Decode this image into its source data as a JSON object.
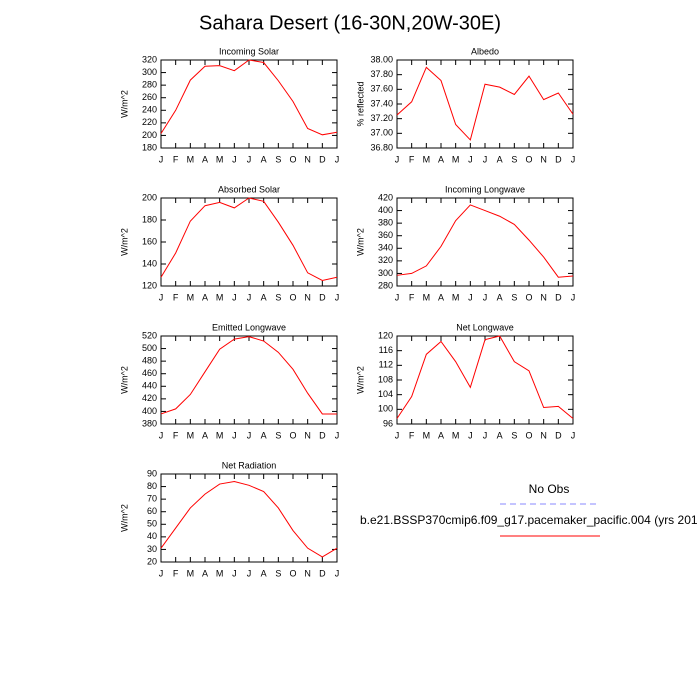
{
  "title": "Sahara Desert (16-30N,20W-30E)",
  "legend": [
    {
      "name": "No Obs",
      "color": "#8a8aff",
      "dashed": true
    },
    {
      "name": "b.e21.BSSP370cmip6.f09_g17.pacemaker_pacific.004 (yrs 201",
      "color": "#ff0000",
      "dashed": false
    }
  ],
  "chart_data": [
    {
      "type": "line",
      "title": "Incoming Solar",
      "ylabel": "W/m^2",
      "color": "#ff0000",
      "categories": [
        "J",
        "F",
        "M",
        "A",
        "M",
        "J",
        "J",
        "A",
        "S",
        "O",
        "N",
        "D",
        "J"
      ],
      "values": [
        203,
        240,
        288,
        310,
        311,
        303,
        320,
        316,
        287,
        254,
        211,
        201,
        205
      ],
      "ylim": [
        180,
        320
      ],
      "yticks": [
        180,
        200,
        220,
        240,
        260,
        280,
        300,
        320
      ]
    },
    {
      "type": "line",
      "title": "Albedo",
      "ylabel": "% reflected",
      "color": "#ff0000",
      "categories": [
        "J",
        "F",
        "M",
        "A",
        "M",
        "J",
        "J",
        "A",
        "S",
        "O",
        "N",
        "D",
        "J"
      ],
      "values": [
        37.25,
        37.43,
        37.9,
        37.72,
        37.12,
        36.91,
        37.67,
        37.63,
        37.53,
        37.78,
        37.46,
        37.55,
        37.26
      ],
      "ylim": [
        36.8,
        38.0
      ],
      "yticks": [
        {
          "value": 36.8,
          "label": "36.80"
        },
        {
          "value": 37.0,
          "label": "37.00"
        },
        {
          "value": 37.2,
          "label": "37.20"
        },
        {
          "value": 37.4,
          "label": "37.40"
        },
        {
          "value": 37.6,
          "label": "37.60"
        },
        {
          "value": 37.8,
          "label": "37.80"
        },
        {
          "value": 38.0,
          "label": "38.00"
        }
      ]
    },
    {
      "type": "line",
      "title": "Absorbed Solar",
      "ylabel": "W/m^2",
      "color": "#ff0000",
      "categories": [
        "J",
        "F",
        "M",
        "A",
        "M",
        "J",
        "J",
        "A",
        "S",
        "O",
        "N",
        "D",
        "J"
      ],
      "values": [
        128,
        150,
        179,
        193,
        196,
        191,
        200,
        197,
        178,
        157,
        132,
        125,
        128
      ],
      "ylim": [
        120,
        200
      ],
      "yticks": [
        120,
        140,
        160,
        180,
        200
      ]
    },
    {
      "type": "line",
      "title": "Incoming Longwave",
      "ylabel": "W/m^2",
      "color": "#ff0000",
      "categories": [
        "J",
        "F",
        "M",
        "A",
        "M",
        "J",
        "J",
        "A",
        "S",
        "O",
        "N",
        "D",
        "J"
      ],
      "values": [
        297,
        300,
        312,
        343,
        384,
        409,
        400,
        391,
        378,
        353,
        326,
        294,
        296
      ],
      "ylim": [
        280,
        420
      ],
      "yticks": [
        280,
        300,
        320,
        340,
        360,
        380,
        400,
        420
      ]
    },
    {
      "type": "line",
      "title": "Emitted Longwave",
      "ylabel": "W/m^2",
      "color": "#ff0000",
      "categories": [
        "J",
        "F",
        "M",
        "A",
        "M",
        "J",
        "J",
        "A",
        "S",
        "O",
        "N",
        "D",
        "J"
      ],
      "values": [
        396,
        404,
        427,
        463,
        499,
        515,
        519,
        512,
        494,
        467,
        429,
        396,
        396
      ],
      "ylim": [
        380,
        520
      ],
      "yticks": [
        380,
        400,
        420,
        440,
        460,
        480,
        500,
        520
      ]
    },
    {
      "type": "line",
      "title": "Net Longwave",
      "ylabel": "W/m^2",
      "color": "#ff0000",
      "categories": [
        "J",
        "F",
        "M",
        "A",
        "M",
        "J",
        "J",
        "A",
        "S",
        "O",
        "N",
        "D",
        "J"
      ],
      "values": [
        97.5,
        103.5,
        115,
        118.5,
        113,
        106,
        119,
        120,
        113,
        110.5,
        100.5,
        100.8,
        97.5
      ],
      "ylim": [
        96,
        120
      ],
      "yticks": [
        96,
        100,
        104,
        108,
        112,
        116,
        120
      ]
    },
    {
      "type": "line",
      "title": "Net Radiation",
      "ylabel": "W/m^2",
      "color": "#ff0000",
      "categories": [
        "J",
        "F",
        "M",
        "A",
        "M",
        "J",
        "J",
        "A",
        "S",
        "O",
        "N",
        "D",
        "J"
      ],
      "values": [
        31,
        47,
        63,
        74,
        82,
        84,
        81,
        76,
        63,
        45,
        31,
        24,
        31
      ],
      "ylim": [
        20,
        90
      ],
      "yticks": [
        20,
        30,
        40,
        50,
        60,
        70,
        80,
        90
      ]
    }
  ]
}
